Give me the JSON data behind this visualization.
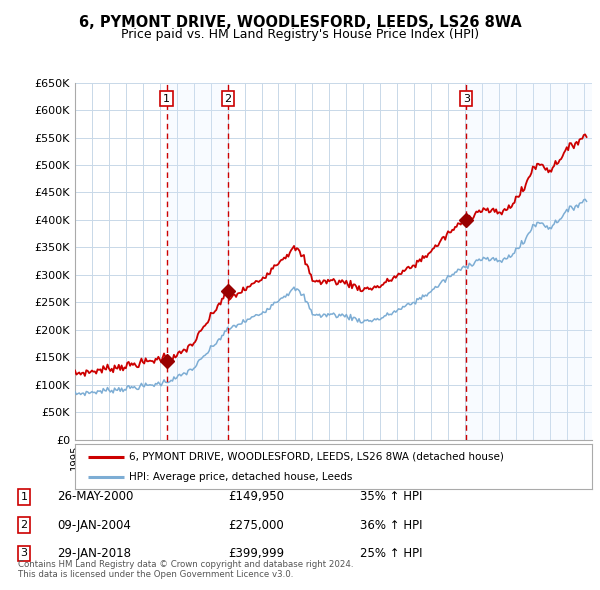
{
  "title_line1": "6, PYMONT DRIVE, WOODLESFORD, LEEDS, LS26 8WA",
  "title_line2": "Price paid vs. HM Land Registry's House Price Index (HPI)",
  "background_color": "#ffffff",
  "plot_bg_color": "#ffffff",
  "grid_color": "#c8d8e8",
  "hpi_line_color": "#7dadd4",
  "price_line_color": "#cc0000",
  "sale_marker_color": "#990000",
  "vertical_line_color": "#cc0000",
  "shade_color": "#ddeeff",
  "legend_price_label": "6, PYMONT DRIVE, WOODLESFORD, LEEDS, LS26 8WA (detached house)",
  "legend_hpi_label": "HPI: Average price, detached house, Leeds",
  "transactions": [
    {
      "num": 1,
      "date": "26-MAY-2000",
      "date_x": 2000.4,
      "price": 149950,
      "pct": "35%"
    },
    {
      "num": 2,
      "date": "09-JAN-2004",
      "date_x": 2004.02,
      "price": 275000,
      "pct": "36%"
    },
    {
      "num": 3,
      "date": "29-JAN-2018",
      "date_x": 2018.07,
      "price": 399999,
      "pct": "25%"
    }
  ],
  "footnote": "Contains HM Land Registry data © Crown copyright and database right 2024.\nThis data is licensed under the Open Government Licence v3.0.",
  "ylim_min": 0,
  "ylim_max": 650000,
  "yticks": [
    0,
    50000,
    100000,
    150000,
    200000,
    250000,
    300000,
    350000,
    400000,
    450000,
    500000,
    550000,
    600000,
    650000
  ],
  "xlim_min": 1995,
  "xlim_max": 2025.5
}
